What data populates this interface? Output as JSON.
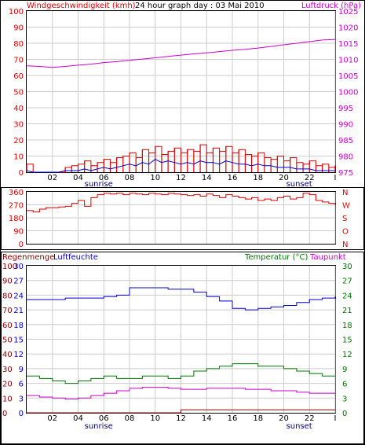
{
  "colors": {
    "red": "#dd0000",
    "blue": "#0000cc",
    "magenta": "#cc00cc",
    "green": "#007700",
    "darkred": "#880000",
    "black": "#000000",
    "grid": "#cccccc"
  },
  "header": {
    "wind_label": "Windgeschwindigkeit (kmh)",
    "graph_title": "24 hour graph day : 03 Mai 2010",
    "pressure_label": "Luftdruck (hPa)"
  },
  "bottom_header": {
    "rain_label": "Regenmenge",
    "humidity_label": "Luftfeuchte",
    "temp_label": "Temperatur (°C)",
    "dew_label": "Taupunkt"
  },
  "x_axis": {
    "ticks": [
      "02",
      "04",
      "06",
      "08",
      "10",
      "12",
      "14",
      "16",
      "18",
      "20",
      "22",
      "I"
    ],
    "sunrise_label": "sunrise",
    "sunset_label": "sunset",
    "sunrise_hour": 5.6,
    "sunset_hour": 21.2
  },
  "chart_data": [
    {
      "type": "line",
      "name": "wind-pressure",
      "x_unit": "hour",
      "xlim": [
        0,
        24
      ],
      "left_axis": {
        "ticks": [
          "100",
          "90",
          "80",
          "70",
          "60",
          "50",
          "40",
          "30",
          "20",
          "10",
          "0"
        ],
        "ylim": [
          0,
          100
        ]
      },
      "right_axis": {
        "ticks": [
          "1025",
          "1020",
          "1015",
          "1010",
          "1005",
          "1000",
          "995",
          "990",
          "985",
          "980",
          "975"
        ],
        "ylim": [
          975,
          1025
        ]
      },
      "series": [
        {
          "axis": "right",
          "color": "magenta",
          "x": [
            0,
            1,
            2,
            3,
            4,
            5,
            6,
            7,
            8,
            9,
            10,
            11,
            12,
            13,
            14,
            15,
            16,
            17,
            18,
            19,
            20,
            21,
            22,
            23,
            24
          ],
          "y": [
            1008,
            1007.8,
            1007.5,
            1007.8,
            1008.2,
            1008.5,
            1009,
            1009.3,
            1009.7,
            1010.1,
            1010.5,
            1010.9,
            1011.3,
            1011.7,
            1012,
            1012.4,
            1012.8,
            1013.1,
            1013.5,
            1014,
            1014.5,
            1015,
            1015.5,
            1016,
            1016.2
          ]
        },
        {
          "axis": "left",
          "color": "red",
          "style": "gust",
          "x": [
            0,
            0.5,
            1,
            1.5,
            2,
            2.5,
            3,
            3.5,
            4,
            4.5,
            5,
            5.5,
            6,
            6.5,
            7,
            7.5,
            8,
            8.5,
            9,
            9.5,
            10,
            10.5,
            11,
            11.5,
            12,
            12.5,
            13,
            13.5,
            14,
            14.5,
            15,
            15.5,
            16,
            16.5,
            17,
            17.5,
            18,
            18.5,
            19,
            19.5,
            20,
            20.5,
            21,
            21.5,
            22,
            22.5,
            23,
            23.5,
            24
          ],
          "y": [
            5,
            0,
            0,
            0,
            0,
            0,
            3,
            4,
            5,
            7,
            4,
            6,
            8,
            6,
            9,
            10,
            12,
            9,
            14,
            12,
            16,
            11,
            13,
            15,
            12,
            14,
            13,
            17,
            12,
            15,
            13,
            16,
            12,
            14,
            11,
            10,
            12,
            9,
            8,
            10,
            7,
            9,
            6,
            5,
            7,
            4,
            5,
            3,
            4
          ]
        },
        {
          "axis": "left",
          "color": "blue",
          "x": [
            0,
            0.5,
            1,
            1.5,
            2,
            2.5,
            3,
            3.5,
            4,
            4.5,
            5,
            5.5,
            6,
            6.5,
            7,
            7.5,
            8,
            8.5,
            9,
            9.5,
            10,
            10.5,
            11,
            11.5,
            12,
            12.5,
            13,
            13.5,
            14,
            14.5,
            15,
            15.5,
            16,
            16.5,
            17,
            17.5,
            18,
            18.5,
            19,
            19.5,
            20,
            20.5,
            21,
            21.5,
            22,
            22.5,
            23,
            23.5,
            24
          ],
          "y": [
            1,
            0,
            0,
            0,
            0,
            0,
            1,
            1,
            1,
            2,
            1,
            2,
            3,
            2,
            3,
            4,
            5,
            4,
            6,
            5,
            8,
            6,
            7,
            6,
            5,
            6,
            5,
            7,
            6,
            6,
            5,
            7,
            6,
            5,
            5,
            4,
            5,
            4,
            4,
            3,
            3,
            3,
            2,
            2,
            2,
            1,
            1,
            1,
            1
          ]
        }
      ]
    },
    {
      "type": "line",
      "name": "wind-direction",
      "x_unit": "hour",
      "xlim": [
        0,
        24
      ],
      "left_axis": {
        "ticks": [
          "360",
          "270",
          "180",
          "90",
          "0"
        ],
        "ylim": [
          0,
          360
        ]
      },
      "right_labels": [
        "N",
        "W",
        "S",
        "O",
        "N"
      ],
      "series": [
        {
          "color": "red",
          "x": [
            0,
            0.5,
            1,
            1.5,
            2,
            2.5,
            3,
            3.5,
            4,
            4.5,
            5,
            5.5,
            6,
            6.5,
            7,
            7.5,
            8,
            8.5,
            9,
            9.5,
            10,
            10.5,
            11,
            11.5,
            12,
            12.5,
            13,
            13.5,
            14,
            14.5,
            15,
            15.5,
            16,
            16.5,
            17,
            17.5,
            18,
            18.5,
            19,
            19.5,
            20,
            20.5,
            21,
            21.5,
            22,
            22.5,
            23,
            23.5,
            24
          ],
          "y": [
            230,
            220,
            240,
            250,
            250,
            255,
            260,
            280,
            300,
            260,
            320,
            340,
            350,
            345,
            350,
            340,
            350,
            345,
            340,
            350,
            345,
            340,
            350,
            345,
            340,
            335,
            340,
            330,
            345,
            335,
            320,
            340,
            330,
            320,
            310,
            320,
            300,
            310,
            300,
            320,
            330,
            310,
            320,
            350,
            340,
            300,
            290,
            280,
            270
          ]
        }
      ]
    },
    {
      "type": "line",
      "name": "humidity-temp",
      "x_unit": "hour",
      "xlim": [
        0,
        24
      ],
      "rain_ticks": [
        "100",
        "90",
        "80",
        "70",
        "60",
        "50",
        "40",
        "30",
        "20",
        "10",
        "0"
      ],
      "humidity_ticks": [
        "30",
        "27",
        "24",
        "21",
        "18",
        "15",
        "12",
        "9",
        "6",
        "3",
        "0"
      ],
      "left_ylim": [
        0,
        100
      ],
      "temp_ticks": [
        "30",
        "27",
        "24",
        "21",
        "18",
        "15",
        "12",
        "9",
        "6",
        "3",
        "0"
      ],
      "right_ylim": [
        0,
        30
      ],
      "series": [
        {
          "axis": "left",
          "color": "blue",
          "x": [
            0,
            1,
            2,
            3,
            4,
            5,
            6,
            7,
            8,
            9,
            10,
            11,
            12,
            13,
            14,
            15,
            16,
            17,
            18,
            19,
            20,
            21,
            22,
            23,
            24
          ],
          "y": [
            77,
            77,
            77,
            78,
            78,
            78,
            79,
            80,
            85,
            85,
            85,
            84,
            84,
            82,
            79,
            76,
            71,
            70,
            71,
            72,
            73,
            75,
            77,
            78,
            79
          ]
        },
        {
          "axis": "right",
          "color": "green",
          "x": [
            0,
            1,
            2,
            3,
            4,
            5,
            6,
            7,
            8,
            9,
            10,
            11,
            12,
            13,
            14,
            15,
            16,
            17,
            18,
            19,
            20,
            21,
            22,
            23,
            24
          ],
          "y": [
            7.5,
            7,
            6.5,
            6,
            6.5,
            7,
            7.5,
            7,
            7,
            7.5,
            7.5,
            7,
            7.5,
            8.5,
            9,
            9.5,
            10,
            10,
            9.5,
            9.5,
            9,
            8.5,
            8,
            7.5,
            7.5
          ]
        },
        {
          "axis": "right",
          "color": "magenta",
          "x": [
            0,
            1,
            2,
            3,
            4,
            5,
            6,
            7,
            8,
            9,
            10,
            11,
            12,
            13,
            14,
            15,
            16,
            17,
            18,
            19,
            20,
            21,
            22,
            23,
            24
          ],
          "y": [
            3.5,
            3.2,
            3,
            2.8,
            3,
            3.5,
            4,
            4.5,
            5,
            5.2,
            5.2,
            5,
            4.8,
            4.8,
            5,
            5,
            5,
            4.8,
            4.8,
            4.5,
            4.5,
            4.2,
            4,
            4,
            4
          ]
        },
        {
          "axis": "left",
          "color": "darkred",
          "x": [
            0,
            11.9,
            12,
            24
          ],
          "y": [
            0,
            0,
            2,
            2
          ]
        }
      ]
    }
  ]
}
